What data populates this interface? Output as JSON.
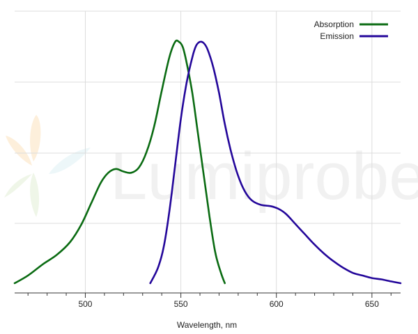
{
  "chart_data": {
    "type": "line",
    "title": "",
    "xlabel": "Wavelength, nm",
    "ylabel": "",
    "xlim": [
      463,
      665
    ],
    "ylim": [
      0,
      1.0
    ],
    "xticks": [
      500,
      550,
      600,
      650
    ],
    "xtick_labels": [
      "500",
      "550",
      "600",
      "650"
    ],
    "grid": true,
    "legend_position": "top-right",
    "series": [
      {
        "name": "Absorption",
        "color": "#0a6b12",
        "points": [
          [
            463,
            0.0
          ],
          [
            470,
            0.03
          ],
          [
            478,
            0.075
          ],
          [
            485,
            0.11
          ],
          [
            492,
            0.16
          ],
          [
            498,
            0.23
          ],
          [
            503,
            0.31
          ],
          [
            508,
            0.39
          ],
          [
            512,
            0.43
          ],
          [
            516,
            0.445
          ],
          [
            520,
            0.435
          ],
          [
            524,
            0.43
          ],
          [
            528,
            0.45
          ],
          [
            532,
            0.51
          ],
          [
            536,
            0.61
          ],
          [
            540,
            0.75
          ],
          [
            544,
            0.88
          ],
          [
            547,
            0.94
          ],
          [
            549,
            0.94
          ],
          [
            551,
            0.92
          ],
          [
            553,
            0.86
          ],
          [
            556,
            0.74
          ],
          [
            559,
            0.58
          ],
          [
            562,
            0.42
          ],
          [
            565,
            0.26
          ],
          [
            568,
            0.12
          ],
          [
            571,
            0.04
          ],
          [
            573,
            0.0
          ]
        ]
      },
      {
        "name": "Emission",
        "color": "#23069a",
        "points": [
          [
            534,
            0.0
          ],
          [
            538,
            0.06
          ],
          [
            541,
            0.14
          ],
          [
            544,
            0.28
          ],
          [
            547,
            0.46
          ],
          [
            550,
            0.64
          ],
          [
            553,
            0.78
          ],
          [
            556,
            0.88
          ],
          [
            558,
            0.925
          ],
          [
            560,
            0.94
          ],
          [
            562,
            0.935
          ],
          [
            564,
            0.91
          ],
          [
            567,
            0.84
          ],
          [
            570,
            0.74
          ],
          [
            573,
            0.62
          ],
          [
            576,
            0.52
          ],
          [
            579,
            0.44
          ],
          [
            582,
            0.38
          ],
          [
            585,
            0.34
          ],
          [
            588,
            0.318
          ],
          [
            592,
            0.305
          ],
          [
            597,
            0.3
          ],
          [
            601,
            0.29
          ],
          [
            605,
            0.27
          ],
          [
            610,
            0.23
          ],
          [
            615,
            0.19
          ],
          [
            620,
            0.15
          ],
          [
            625,
            0.115
          ],
          [
            630,
            0.085
          ],
          [
            635,
            0.06
          ],
          [
            640,
            0.04
          ],
          [
            645,
            0.03
          ],
          [
            650,
            0.02
          ],
          [
            655,
            0.015
          ],
          [
            660,
            0.007
          ],
          [
            665,
            0.0
          ]
        ]
      }
    ]
  },
  "watermark": {
    "text": "Lumiprobe"
  }
}
